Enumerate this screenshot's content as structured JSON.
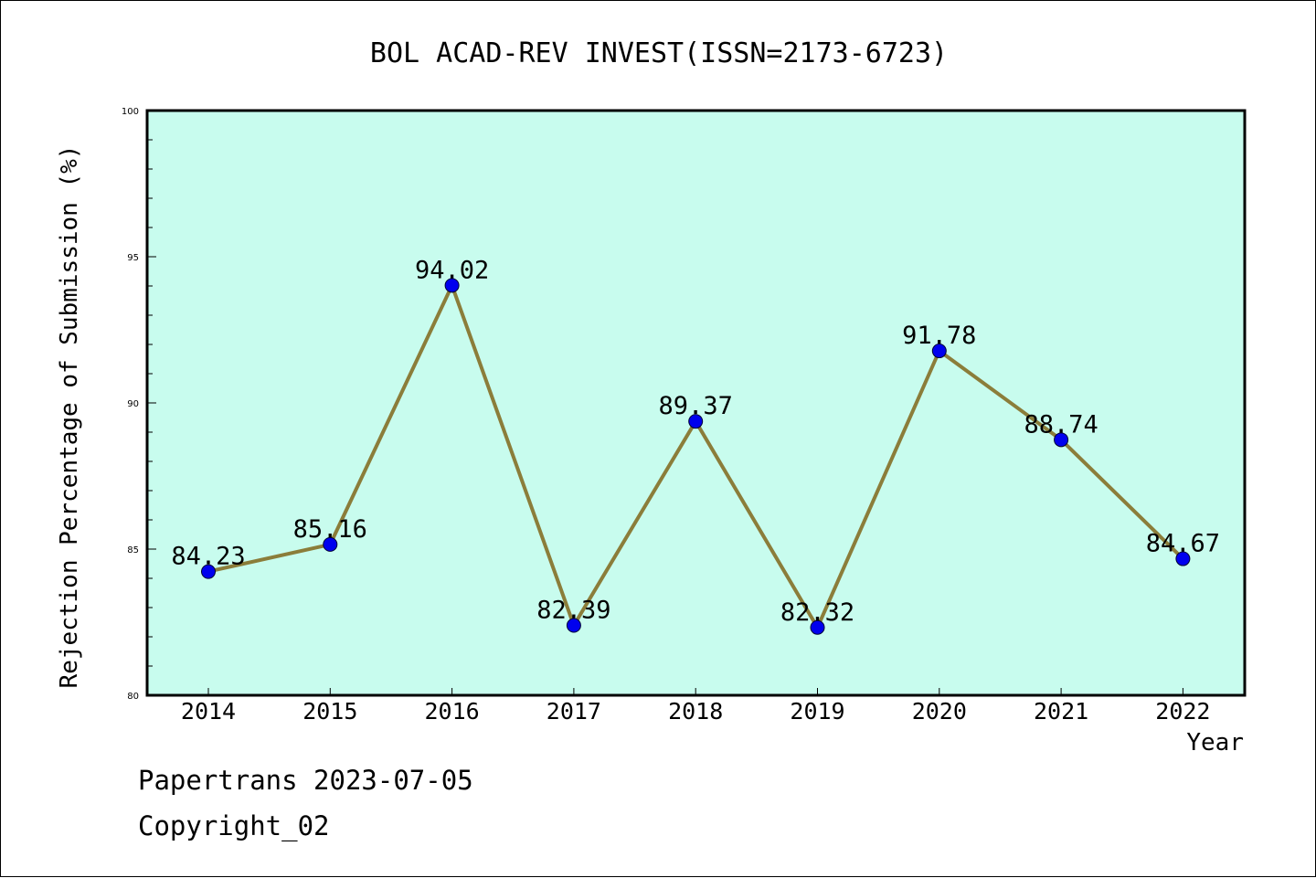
{
  "footer": {
    "line1": "Papertrans 2023-07-05",
    "line2": "Copyright_02"
  },
  "colors": {
    "plot_background": "#c8fcee",
    "line": "#8b7d3a",
    "marker": "#0000ee",
    "axis": "#000000"
  },
  "chart_data": {
    "type": "line",
    "title": "BOL ACAD-REV INVEST(ISSN=2173-6723)",
    "xlabel": "Year",
    "ylabel": "Rejection Percentage of Submission (%)",
    "categories": [
      "2014",
      "2015",
      "2016",
      "2017",
      "2018",
      "2019",
      "2020",
      "2021",
      "2022"
    ],
    "values": [
      84.23,
      85.16,
      94.02,
      82.39,
      89.37,
      82.32,
      91.78,
      88.74,
      84.67
    ],
    "data_labels": [
      "84.23",
      "85.16",
      "94.02",
      "82.39",
      "89.37",
      "82.32",
      "91.78",
      "88.74",
      "84.67"
    ],
    "ylim": [
      80,
      100
    ],
    "yticks": [
      80,
      85,
      90,
      95,
      100
    ],
    "ytick_labels": [
      "80",
      "85",
      "90",
      "95",
      "100"
    ],
    "grid": false,
    "legend": "none"
  }
}
